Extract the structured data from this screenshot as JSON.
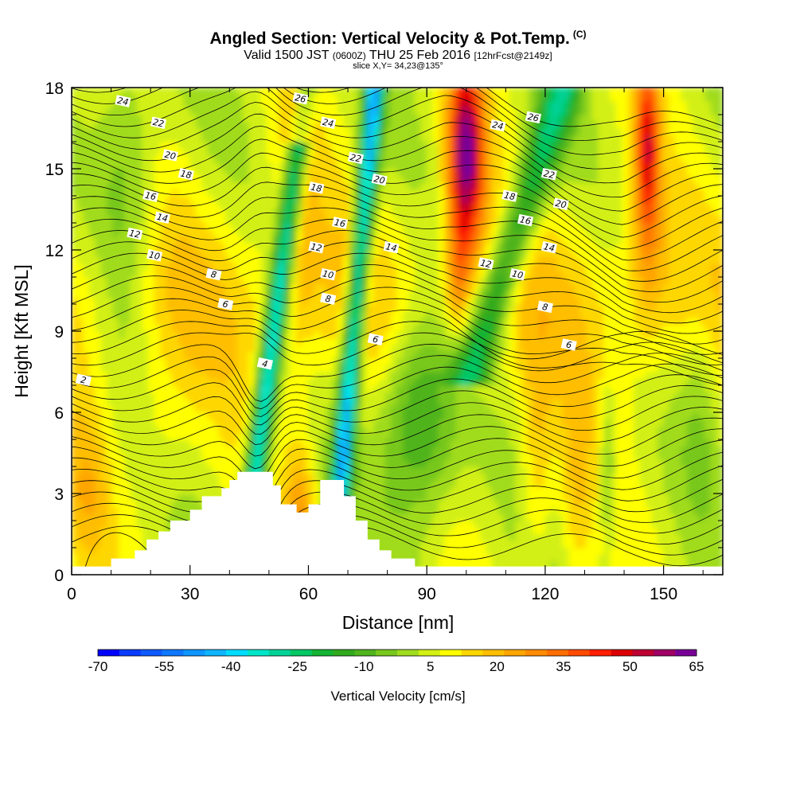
{
  "title": {
    "main": "Angled Section: Vertical Velocity & Pot.Temp.",
    "copyright": "(C)",
    "valid_prefix": "Valid 1500 JST",
    "valid_utc": "(0600Z)",
    "valid_date": "THU 25 Feb 2016",
    "forecast": "[12hrFcst@2149z]",
    "slice": "slice X,Y= 34,23@135°"
  },
  "chart_data": {
    "type": "heatmap",
    "xlabel": "Distance [nm]",
    "ylabel": "Height [Kft MSL]",
    "xlim": [
      0,
      165
    ],
    "ylim": [
      0,
      18
    ],
    "x_ticks": [
      "0",
      "30",
      "60",
      "90",
      "120",
      "150"
    ],
    "y_ticks": [
      "0",
      "3",
      "6",
      "9",
      "12",
      "15",
      "18"
    ],
    "colorbar": {
      "label": "Vertical Velocity [cm/s]",
      "ticks": [
        "-70",
        "-55",
        "-40",
        "-25",
        "-10",
        "5",
        "20",
        "35",
        "50",
        "65"
      ],
      "levels": [
        -70,
        -65,
        -60,
        -55,
        -50,
        -45,
        -40,
        -35,
        -30,
        -25,
        -20,
        -15,
        -10,
        -5,
        0,
        5,
        10,
        15,
        20,
        25,
        30,
        35,
        40,
        45,
        50,
        55,
        60,
        65
      ],
      "colors": [
        "#0000ff",
        "#0a3cff",
        "#0f5aff",
        "#0f78ff",
        "#0f96ff",
        "#0fb4ff",
        "#00dcff",
        "#00e6c8",
        "#00d296",
        "#00c864",
        "#14b432",
        "#32aa1e",
        "#50b41e",
        "#78c81e",
        "#a0dc1e",
        "#d2f014",
        "#ffff00",
        "#ffd700",
        "#ffbe00",
        "#ffa500",
        "#ff8c00",
        "#ff6e00",
        "#ff4b00",
        "#ff1e00",
        "#dc0000",
        "#be0032",
        "#a00064",
        "#780096"
      ]
    },
    "contour_labels": [
      {
        "text": "24",
        "x": 13,
        "y": 17.5
      },
      {
        "text": "26",
        "x": 58,
        "y": 17.6
      },
      {
        "text": "22",
        "x": 22,
        "y": 16.7
      },
      {
        "text": "24",
        "x": 65,
        "y": 16.7
      },
      {
        "text": "24",
        "x": 108,
        "y": 16.6
      },
      {
        "text": "26",
        "x": 117,
        "y": 16.9
      },
      {
        "text": "20",
        "x": 25,
        "y": 15.5
      },
      {
        "text": "22",
        "x": 72,
        "y": 15.4
      },
      {
        "text": "18",
        "x": 29,
        "y": 14.8
      },
      {
        "text": "20",
        "x": 78,
        "y": 14.6
      },
      {
        "text": "22",
        "x": 121,
        "y": 14.8
      },
      {
        "text": "16",
        "x": 20,
        "y": 14.0
      },
      {
        "text": "18",
        "x": 62,
        "y": 14.3
      },
      {
        "text": "18",
        "x": 111,
        "y": 14.0
      },
      {
        "text": "20",
        "x": 124,
        "y": 13.7
      },
      {
        "text": "14",
        "x": 23,
        "y": 13.2
      },
      {
        "text": "16",
        "x": 68,
        "y": 13.0
      },
      {
        "text": "16",
        "x": 115,
        "y": 13.1
      },
      {
        "text": "12",
        "x": 16,
        "y": 12.6
      },
      {
        "text": "12",
        "x": 62,
        "y": 12.1
      },
      {
        "text": "14",
        "x": 81,
        "y": 12.1
      },
      {
        "text": "14",
        "x": 121,
        "y": 12.1
      },
      {
        "text": "10",
        "x": 21,
        "y": 11.8
      },
      {
        "text": "12",
        "x": 105,
        "y": 11.5
      },
      {
        "text": "8",
        "x": 36,
        "y": 11.1
      },
      {
        "text": "10",
        "x": 65,
        "y": 11.1
      },
      {
        "text": "10",
        "x": 113,
        "y": 11.1
      },
      {
        "text": "6",
        "x": 39,
        "y": 10.0
      },
      {
        "text": "8",
        "x": 65,
        "y": 10.2
      },
      {
        "text": "8",
        "x": 120,
        "y": 9.9
      },
      {
        "text": "6",
        "x": 77,
        "y": 8.7
      },
      {
        "text": "6",
        "x": 126,
        "y": 8.5
      },
      {
        "text": "4",
        "x": 49,
        "y": 7.8
      },
      {
        "text": "2",
        "x": 3,
        "y": 7.2
      }
    ]
  }
}
